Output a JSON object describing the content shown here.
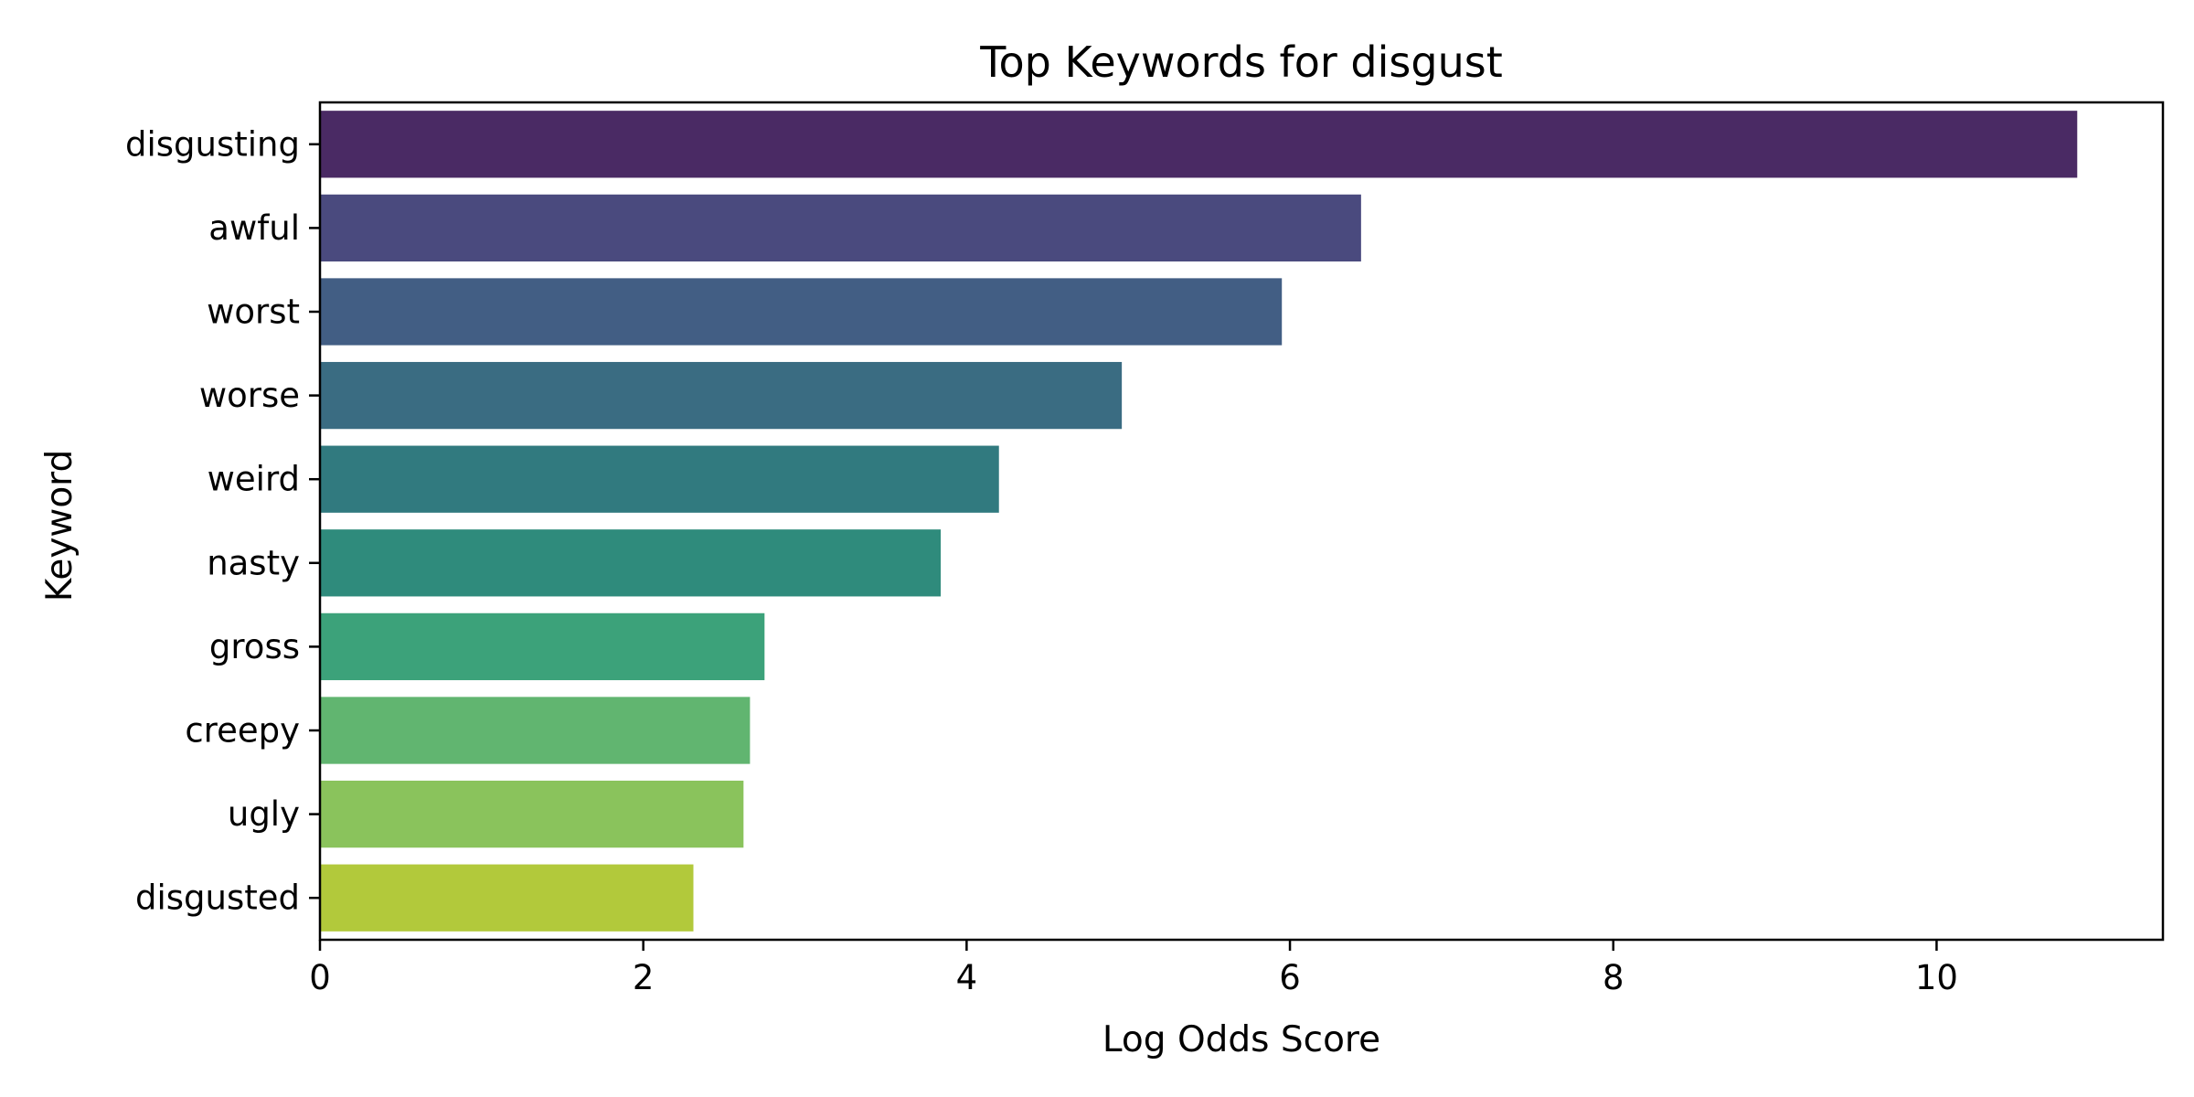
{
  "chart_data": {
    "type": "bar",
    "orientation": "horizontal",
    "title": "Top Keywords for disgust",
    "xlabel": "Log Odds Score",
    "ylabel": "Keyword",
    "xlim": [
      0,
      11.4
    ],
    "xticks": [
      0,
      2,
      4,
      6,
      8,
      10
    ],
    "grid": false,
    "legend": "none",
    "categories": [
      "disgusting",
      "awful",
      "worst",
      "worse",
      "weird",
      "nasty",
      "gross",
      "creepy",
      "ugly",
      "disgusted"
    ],
    "values": [
      10.87,
      6.44,
      5.95,
      4.96,
      4.2,
      3.84,
      2.75,
      2.66,
      2.62,
      2.31
    ],
    "colors": [
      "#4a2a64",
      "#4a4a7e",
      "#425e84",
      "#3a6c82",
      "#317a7f",
      "#2f8b7c",
      "#3ca27a",
      "#61b570",
      "#8ac35c",
      "#b2c93b"
    ]
  }
}
